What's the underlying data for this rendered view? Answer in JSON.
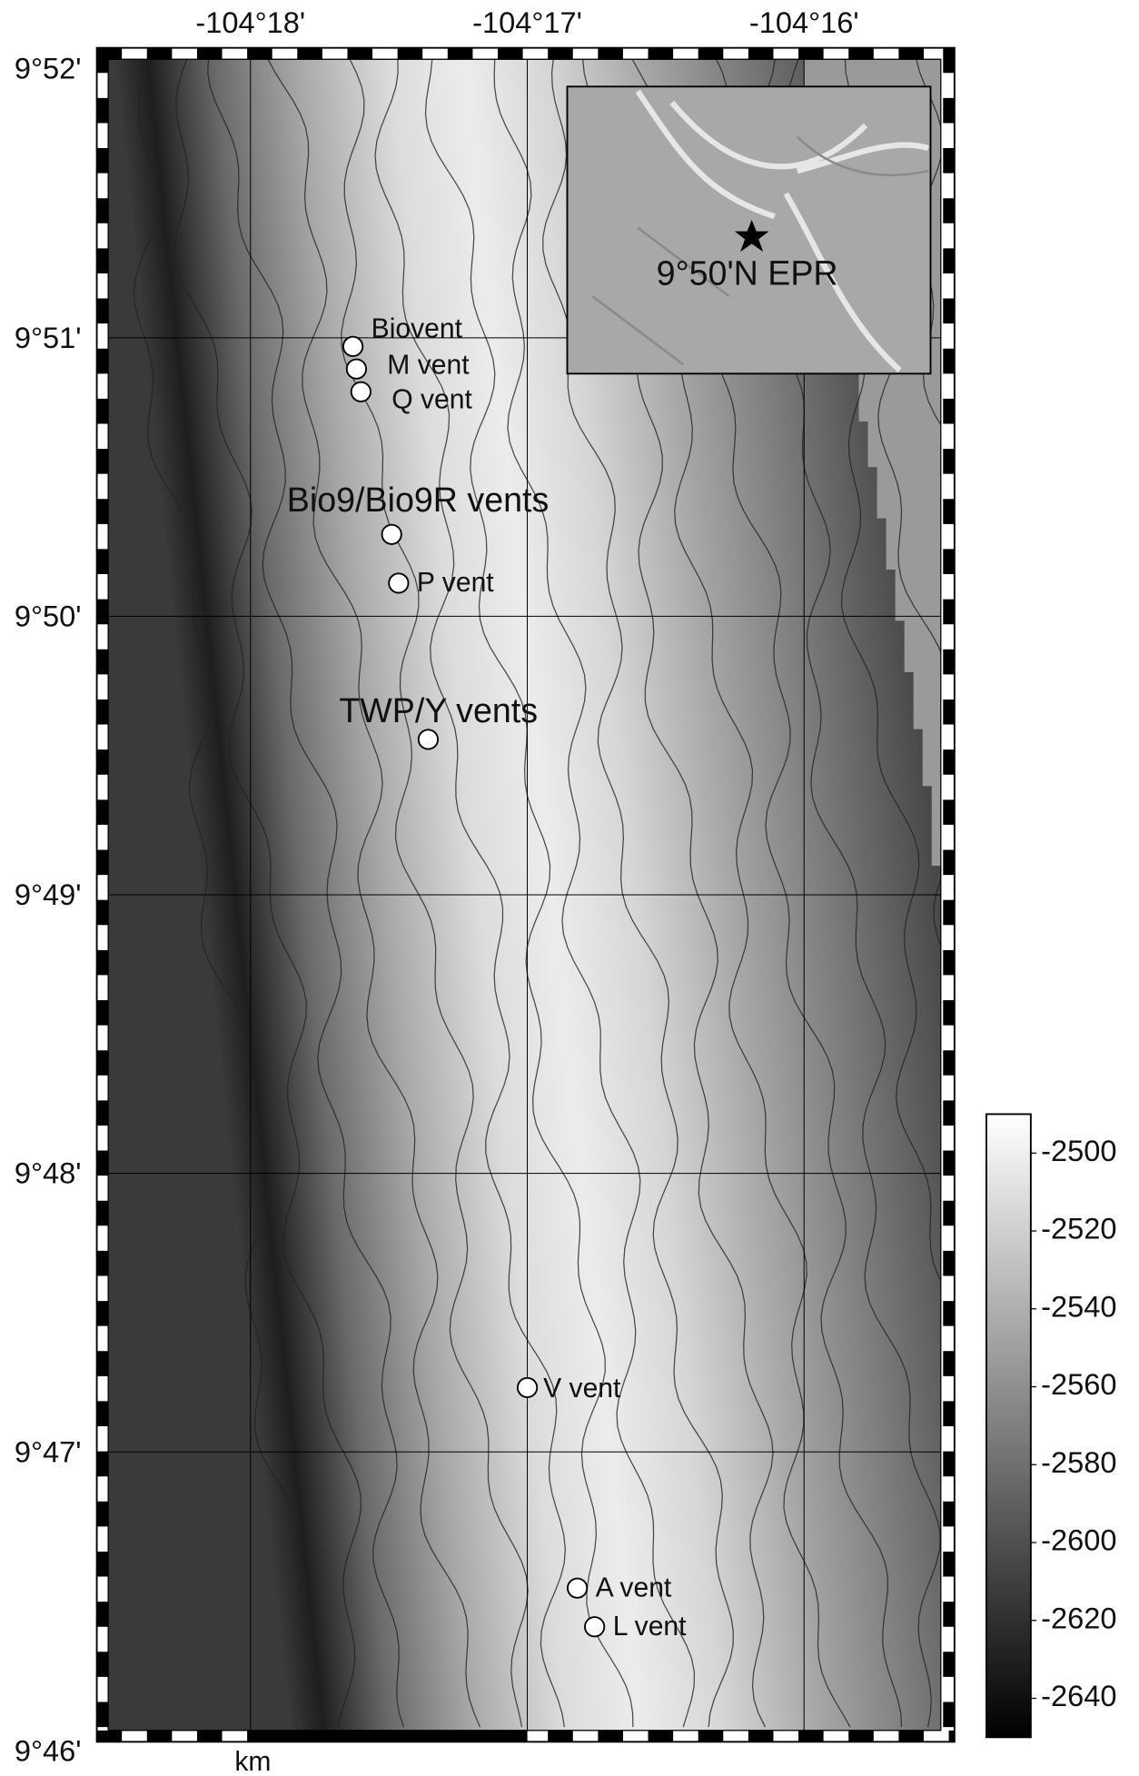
{
  "chart_data": {
    "type": "map",
    "xlim": [
      -104.308567,
      -104.258433
    ],
    "ylim": [
      9.766667,
      9.866667
    ],
    "xticks": [
      {
        "value": -104.3,
        "label": "-104°18'"
      },
      {
        "value": -104.283333,
        "label": "-104°17'"
      },
      {
        "value": -104.266667,
        "label": "-104°16'"
      }
    ],
    "yticks": [
      {
        "value": 9.866667,
        "label": "9°52'"
      },
      {
        "value": 9.85,
        "label": "9°51'"
      },
      {
        "value": 9.833333,
        "label": "9°50'"
      },
      {
        "value": 9.816667,
        "label": "9°49'"
      },
      {
        "value": 9.8,
        "label": "9°48'"
      },
      {
        "value": 9.783333,
        "label": "9°47'"
      },
      {
        "value": 9.766667,
        "label": "9°46'"
      }
    ],
    "grid": true,
    "points": [
      {
        "name": "Biovent",
        "lon": -104.29383,
        "lat": 9.849483
      },
      {
        "name": "M vent",
        "lon": -104.29362,
        "lat": 9.848133
      },
      {
        "name": "Q vent",
        "lon": -104.29335,
        "lat": 9.846767
      },
      {
        "name": "Bio9/Bio9R vents",
        "lon": -104.2915,
        "lat": 9.838233
      },
      {
        "name": "P vent",
        "lon": -104.29108,
        "lat": 9.835317
      },
      {
        "name": "TWP/Y vents",
        "lon": -104.2893,
        "lat": 9.825967
      },
      {
        "name": "V vent",
        "lon": -104.28333,
        "lat": 9.787183
      },
      {
        "name": "A vent",
        "lon": -104.28032,
        "lat": 9.775183
      },
      {
        "name": "L vent",
        "lon": -104.27928,
        "lat": 9.772867
      }
    ],
    "colorbar": {
      "lim": [
        -2490,
        -2650
      ],
      "ticks": [
        -2500,
        -2520,
        -2540,
        -2560,
        -2580,
        -2600,
        -2620,
        -2640
      ]
    },
    "inset_label": "9°50'N EPR",
    "scale_label": "km"
  }
}
